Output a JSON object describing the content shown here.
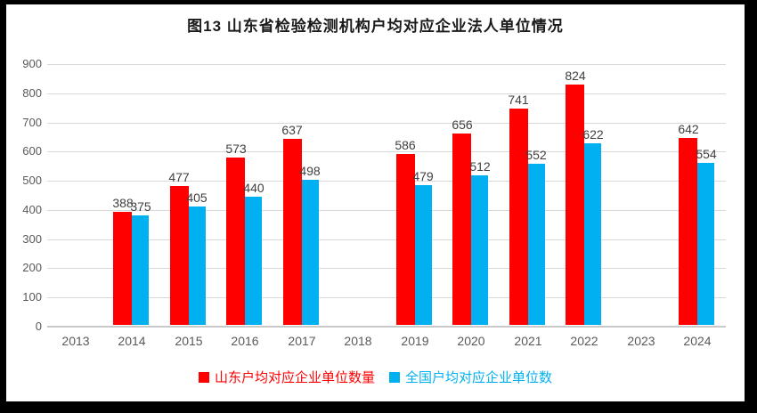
{
  "frame": {
    "background_color": "#000000",
    "card_color": "#ffffff"
  },
  "title": "图13 山东省检验检测机构户均对应企业法人单位情况",
  "chart_data": {
    "type": "bar",
    "title": "图13 山东省检验检测机构户均对应企业法人单位情况",
    "categories": [
      "2013",
      "2014",
      "2015",
      "2016",
      "2017",
      "2018",
      "2019",
      "2020",
      "2021",
      "2022",
      "2023",
      "2024"
    ],
    "series": [
      {
        "name": "山东户均对应企业单位数量",
        "color": "#ff0000",
        "values": [
          null,
          388,
          477,
          573,
          637,
          null,
          586,
          656,
          741,
          824,
          null,
          642
        ]
      },
      {
        "name": "全国户均对应企业单位数",
        "color": "#00b0f0",
        "values": [
          null,
          375,
          405,
          440,
          498,
          null,
          479,
          512,
          552,
          622,
          null,
          554
        ]
      }
    ],
    "xlabel": "",
    "ylabel": "",
    "ylim": [
      0,
      900
    ],
    "ytick_step": 100,
    "yticks": [
      0,
      100,
      200,
      300,
      400,
      500,
      600,
      700,
      800,
      900
    ],
    "grid": true,
    "data_labels": true,
    "legend_position": "bottom",
    "gridline_color": "#d9d9d9",
    "axis_label_color": "#595959",
    "data_label_color": "#404040"
  }
}
